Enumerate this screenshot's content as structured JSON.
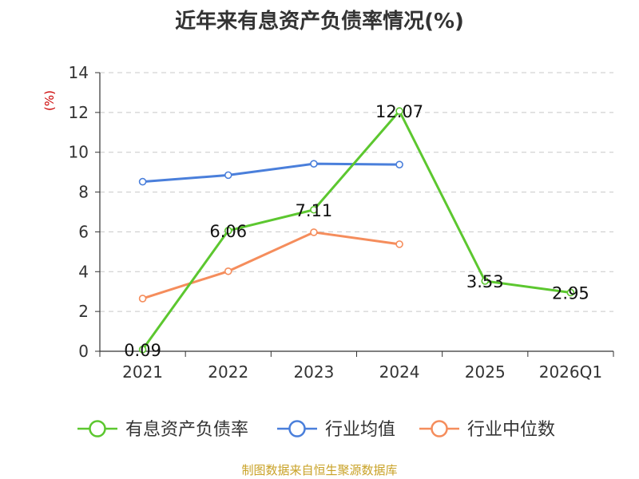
{
  "chart_data": {
    "type": "line",
    "title": "近年来有息资产负债率情况(%)",
    "unit_label": "(%)",
    "categories": [
      "2021",
      "2022",
      "2023",
      "2024",
      "2025",
      "2026Q1"
    ],
    "ylim": [
      0,
      14
    ],
    "yticks": [
      0,
      2,
      4,
      6,
      8,
      10,
      12,
      14
    ],
    "grid": true,
    "legend_position": "bottom",
    "series": [
      {
        "name": "有息资产负债率",
        "color": "#5cc72f",
        "values": [
          0.09,
          6.06,
          7.11,
          12.07,
          3.53,
          2.95
        ],
        "labels": [
          "0.09",
          "6.06",
          "7.11",
          "12.07",
          "3.53",
          "2.95"
        ]
      },
      {
        "name": "行业均值",
        "color": "#4a7fdb",
        "values": [
          8.52,
          8.85,
          9.42,
          9.38,
          null,
          null
        ]
      },
      {
        "name": "行业中位数",
        "color": "#f58d5c",
        "values": [
          2.65,
          4.02,
          5.98,
          5.38,
          null,
          null
        ]
      }
    ],
    "source": "制图数据来自恒生聚源数据库"
  }
}
